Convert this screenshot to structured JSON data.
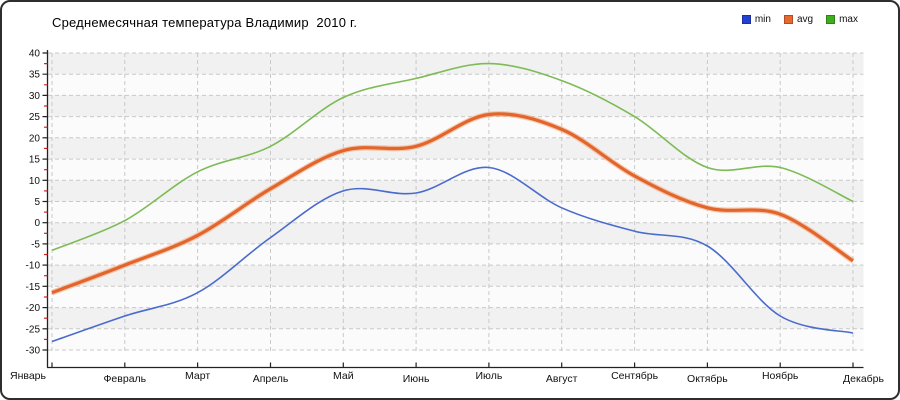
{
  "chart_data": {
    "type": "line",
    "title": "Среднемесячная температура Владимир  2010 г.",
    "categories": [
      "Январь",
      "Февраль",
      "Март",
      "Апрель",
      "Май",
      "Июнь",
      "Июль",
      "Август",
      "Сентябрь",
      "Октябрь",
      "Ноябрь",
      "Декабрь"
    ],
    "series": [
      {
        "name": "min",
        "swatch_color": "#2340d2",
        "line_color": "#4a6bce",
        "values": [
          -28,
          -22,
          -16.5,
          -3.5,
          7.5,
          7,
          13,
          3.5,
          -2,
          -5.5,
          -22,
          -26
        ]
      },
      {
        "name": "avg",
        "swatch_color": "#e8692f",
        "line_color": "#e2662c",
        "halo_color": "#f2ae85",
        "values": [
          -16.5,
          -10,
          -3,
          8,
          17,
          18,
          25.5,
          22,
          11,
          3.5,
          2,
          -9
        ]
      },
      {
        "name": "max",
        "swatch_color": "#3fae1d",
        "line_color": "#7cbb55",
        "values": [
          -6.5,
          0.5,
          12,
          18,
          29.5,
          34,
          37.5,
          33.5,
          25,
          13,
          13,
          5
        ]
      }
    ],
    "y_axis": {
      "min": -30,
      "max": 40,
      "step": 5,
      "minor_step": 2.5
    },
    "ylim": [
      -30,
      40
    ],
    "legend_position": "top-right",
    "grid": "dashed",
    "colors": {
      "grid_line": "#c9c9c9",
      "band_gray": "#f1f1f1",
      "band_white": "#fbfbfb",
      "axis": "#222222",
      "major_tick": "#222222",
      "minor_tick": "#cc2222",
      "title_text": "#000000",
      "label_text": "#111111"
    }
  }
}
